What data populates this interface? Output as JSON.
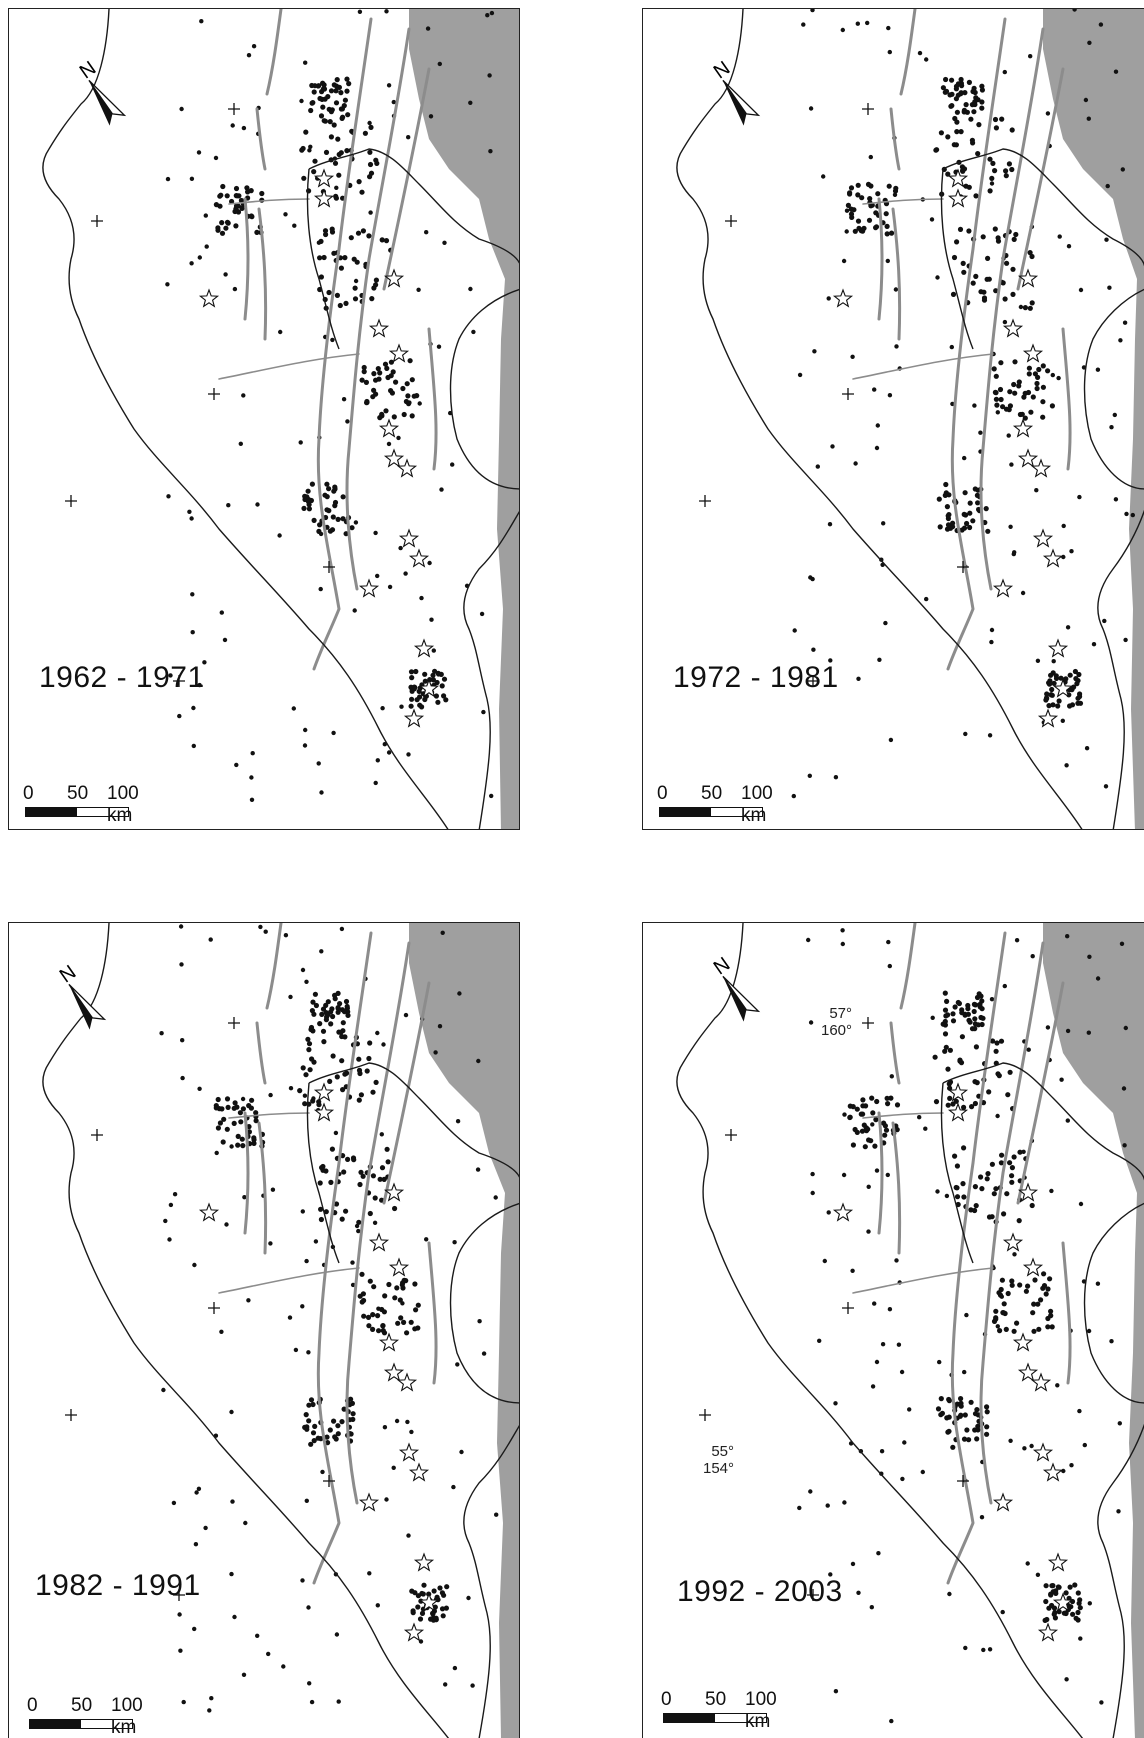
{
  "figure": {
    "panels": [
      {
        "period": "1962 - 1971",
        "scale": {
          "labels": [
            "0",
            "50",
            "100 km"
          ]
        },
        "north": "N",
        "coords": []
      },
      {
        "period": "1972 - 1981",
        "scale": {
          "labels": [
            "0",
            "50",
            "100 km"
          ]
        },
        "north": "N",
        "coords": []
      },
      {
        "period": "1982 - 1991",
        "scale": {
          "labels": [
            "0",
            "50",
            "100 km"
          ]
        },
        "north": "N",
        "coords": []
      },
      {
        "period": "1992 - 2003",
        "scale": {
          "labels": [
            "0",
            "50",
            "100 km"
          ]
        },
        "north": "N",
        "coords": [
          {
            "lat": "57°",
            "lon": "160°"
          },
          {
            "lat": "55°",
            "lon": "154°"
          }
        ]
      }
    ]
  },
  "colors": {
    "frame": "#222222",
    "coastline": "#1a1a1a",
    "faults": "#8c8c8c",
    "events_black": "#111111",
    "events_gray": "#9a9a9a",
    "stars": "#111111"
  },
  "symbols": {
    "north_arrow": "north-arrow-icon",
    "volcano": "star-icon",
    "grid_node": "plus-icon"
  }
}
